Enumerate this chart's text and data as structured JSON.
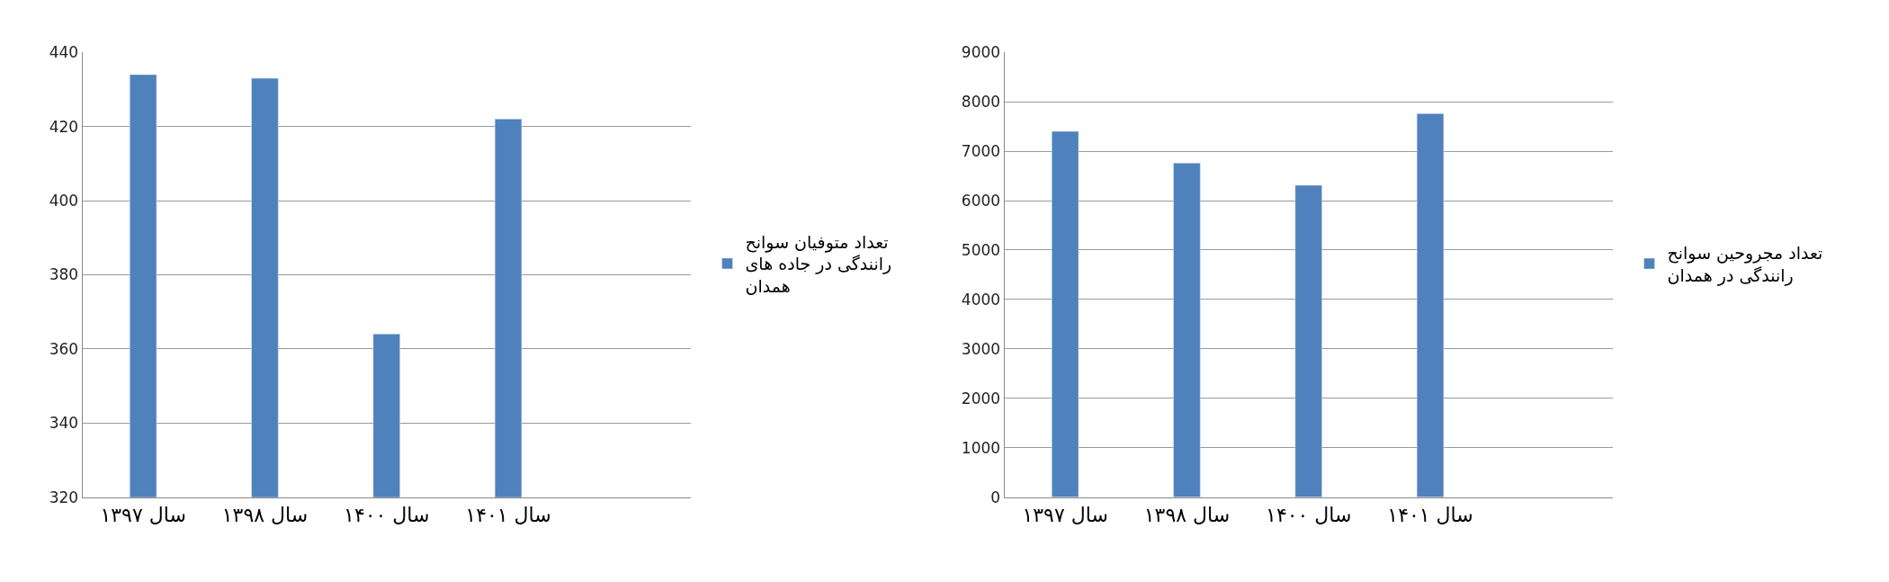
{
  "chart_data": [
    {
      "type": "bar",
      "categories": [
        "سال ۱۳۹۷",
        "سال ۱۳۹۸",
        "سال ۱۴۰۰",
        "سال ۱۴۰۱",
        null
      ],
      "series": [
        {
          "name": "تعداد متوفیان سوانح رانندگی در جاده های همدان",
          "color": "#4f81bd",
          "values": [
            434,
            433,
            364,
            422,
            null
          ]
        }
      ],
      "ylim": [
        320,
        440
      ],
      "yticks": [
        320,
        340,
        360,
        380,
        400,
        420,
        440
      ],
      "grid": "y",
      "legend": "right"
    },
    {
      "type": "bar",
      "categories": [
        "سال ۱۳۹۷",
        "سال ۱۳۹۸",
        "سال ۱۴۰۰",
        "سال ۱۴۰۱",
        null
      ],
      "series": [
        {
          "name": "تعداد مجروحین سوانح رانندگی در همدان",
          "color": "#4f81bd",
          "values": [
            7400,
            6760,
            6310,
            7760,
            null
          ]
        }
      ],
      "ylim": [
        0,
        9000
      ],
      "yticks": [
        0,
        1000,
        2000,
        3000,
        4000,
        5000,
        6000,
        7000,
        8000,
        9000
      ],
      "grid": "y",
      "legend": "right"
    }
  ]
}
